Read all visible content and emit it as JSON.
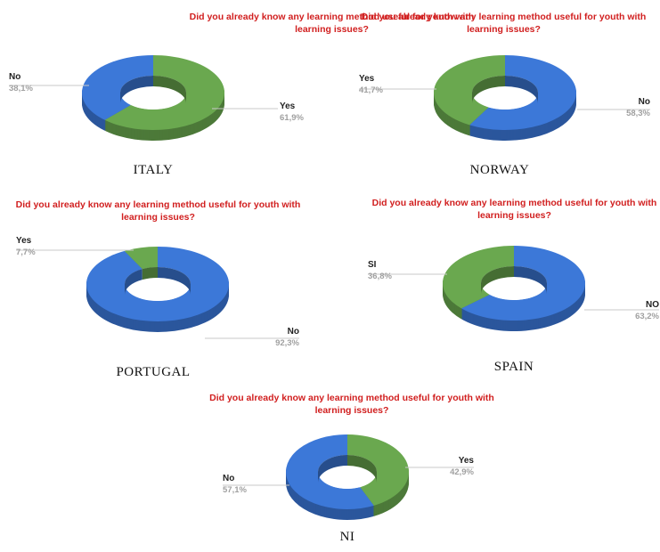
{
  "chart_data": [
    {
      "type": "pie",
      "variant": "donut-3d",
      "title": "Did you already know any learning method useful for youth with learning issues?",
      "caption": "ITALY",
      "slices": [
        {
          "label": "Yes",
          "value": 61.9,
          "value_label": "61,9%",
          "color": "#6aa84f"
        },
        {
          "label": "No",
          "value": 38.1,
          "value_label": "38,1%",
          "color": "#3c78d8"
        }
      ]
    },
    {
      "type": "pie",
      "variant": "donut-3d",
      "title": "Did you already know any learning method useful for youth with learning issues?",
      "caption": "NORWAY",
      "slices": [
        {
          "label": "No",
          "value": 58.3,
          "value_label": "58,3%",
          "color": "#3c78d8"
        },
        {
          "label": "Yes",
          "value": 41.7,
          "value_label": "41,7%",
          "color": "#6aa84f"
        }
      ]
    },
    {
      "type": "pie",
      "variant": "donut-3d",
      "title": "Did you already know any learning method useful for youth with learning issues?",
      "caption": "PORTUGAL",
      "slices": [
        {
          "label": "No",
          "value": 92.3,
          "value_label": "92,3%",
          "color": "#3c78d8"
        },
        {
          "label": "Yes",
          "value": 7.7,
          "value_label": "7,7%",
          "color": "#6aa84f"
        }
      ]
    },
    {
      "type": "pie",
      "variant": "donut-3d",
      "title": "Did you already know any learning method useful for youth with learning issues?",
      "caption": "SPAIN",
      "slices": [
        {
          "label": "NO",
          "value": 63.2,
          "value_label": "63,2%",
          "color": "#3c78d8"
        },
        {
          "label": "SI",
          "value": 36.8,
          "value_label": "36,8%",
          "color": "#6aa84f"
        }
      ]
    },
    {
      "type": "pie",
      "variant": "donut-3d",
      "title": "Did you already know any learning method useful for youth with learning issues?",
      "caption": "NI",
      "slices": [
        {
          "label": "Yes",
          "value": 42.9,
          "value_label": "42,9%",
          "color": "#6aa84f"
        },
        {
          "label": "No",
          "value": 57.1,
          "value_label": "57,1%",
          "color": "#3c78d8"
        }
      ]
    }
  ]
}
